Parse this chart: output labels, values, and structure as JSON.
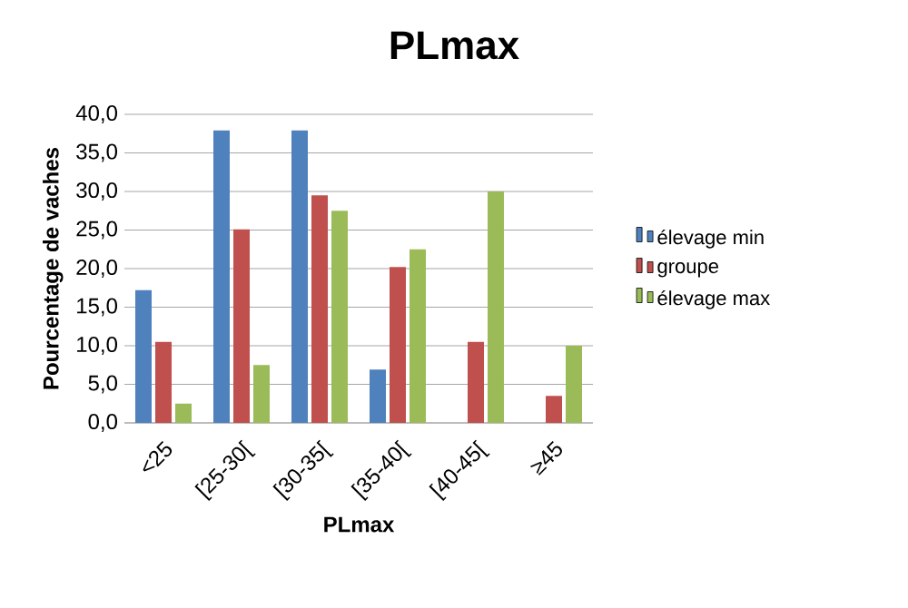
{
  "chart_data": {
    "type": "bar",
    "title": "PLmax",
    "xlabel": "PLmax",
    "ylabel": "Pourcentage de vaches",
    "categories": [
      "<25",
      "[25-30[",
      "[30-35[",
      "[35-40[",
      "[40-45[",
      "≥45"
    ],
    "series": [
      {
        "name": "élevage min",
        "color": "#4f81bd",
        "values": [
          17.2,
          37.9,
          37.9,
          6.9,
          0,
          0
        ]
      },
      {
        "name": "groupe",
        "color": "#c0504d",
        "values": [
          10.5,
          25.1,
          29.5,
          20.2,
          10.5,
          3.5
        ]
      },
      {
        "name": "élevage max",
        "color": "#9bbb59",
        "values": [
          2.5,
          7.5,
          27.5,
          22.5,
          30,
          10
        ]
      }
    ],
    "ylim": [
      0,
      40
    ],
    "yticks": [
      {
        "value": 0,
        "label": "0,0"
      },
      {
        "value": 5,
        "label": "5,0"
      },
      {
        "value": 10,
        "label": "10,0"
      },
      {
        "value": 15,
        "label": "15,0"
      },
      {
        "value": 20,
        "label": "20,0"
      },
      {
        "value": 25,
        "label": "25,0"
      },
      {
        "value": 30,
        "label": "30,0"
      },
      {
        "value": 35,
        "label": "35,0"
      },
      {
        "value": 40,
        "label": "40,0"
      }
    ],
    "grid": "y",
    "legend": "right"
  }
}
